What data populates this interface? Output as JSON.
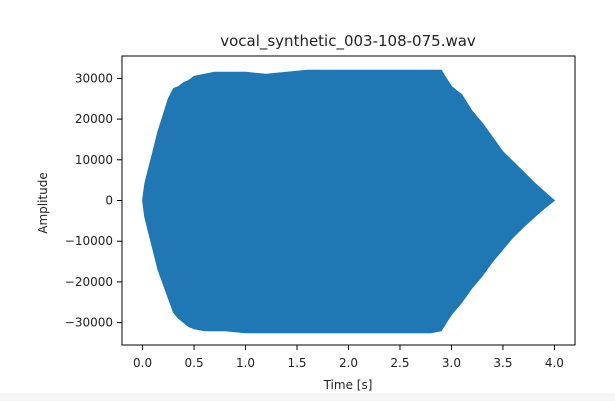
{
  "chart_data": {
    "type": "area",
    "title": "vocal_synthetic_003-108-075.wav",
    "xlabel": "Time [s]",
    "ylabel": "Amplitude",
    "xlim": [
      -0.2,
      4.2
    ],
    "ylim": [
      -35500,
      35500
    ],
    "x_ticks": [
      0.0,
      0.5,
      1.0,
      1.5,
      2.0,
      2.5,
      3.0,
      3.5,
      4.0
    ],
    "x_tick_labels": [
      "0.0",
      "0.5",
      "1.0",
      "1.5",
      "2.0",
      "2.5",
      "3.0",
      "3.5",
      "4.0"
    ],
    "y_ticks": [
      -30000,
      -20000,
      -10000,
      0,
      10000,
      20000,
      30000
    ],
    "y_tick_labels": [
      "−30000",
      "−20000",
      "−10000",
      "0",
      "10000",
      "20000",
      "30000"
    ],
    "grid": false,
    "color": "#1f77b4",
    "series": [
      {
        "x": [
          0.0,
          0.02,
          0.05,
          0.1,
          0.15,
          0.2,
          0.25,
          0.3,
          0.35,
          0.4,
          0.45,
          0.5,
          0.6,
          0.7,
          0.8,
          1.0,
          1.2,
          1.4,
          1.6,
          1.8,
          2.0,
          2.2,
          2.4,
          2.6,
          2.8,
          2.9,
          2.95,
          3.0,
          3.05,
          3.1,
          3.2,
          3.3,
          3.4,
          3.5,
          3.6,
          3.7,
          3.8,
          3.9,
          4.0
        ],
        "envelope_upper": [
          0,
          4000,
          7000,
          12000,
          17000,
          21000,
          25000,
          27500,
          28000,
          29000,
          29500,
          30500,
          31000,
          31500,
          31500,
          31500,
          31000,
          31500,
          32000,
          32000,
          32000,
          32000,
          32000,
          32000,
          32000,
          32000,
          30000,
          28000,
          27000,
          26000,
          22000,
          19000,
          15500,
          12000,
          9500,
          7000,
          4500,
          2200,
          0
        ],
        "envelope_lower": [
          0,
          -4000,
          -7000,
          -12000,
          -17000,
          -20500,
          -24000,
          -27500,
          -29000,
          -30000,
          -31000,
          -31500,
          -32000,
          -32000,
          -32000,
          -32500,
          -32500,
          -32500,
          -32500,
          -32500,
          -32500,
          -32500,
          -32500,
          -32500,
          -32500,
          -32000,
          -30000,
          -28000,
          -26500,
          -25000,
          -21500,
          -18500,
          -15000,
          -12000,
          -9000,
          -6500,
          -4200,
          -2000,
          0
        ]
      }
    ]
  }
}
